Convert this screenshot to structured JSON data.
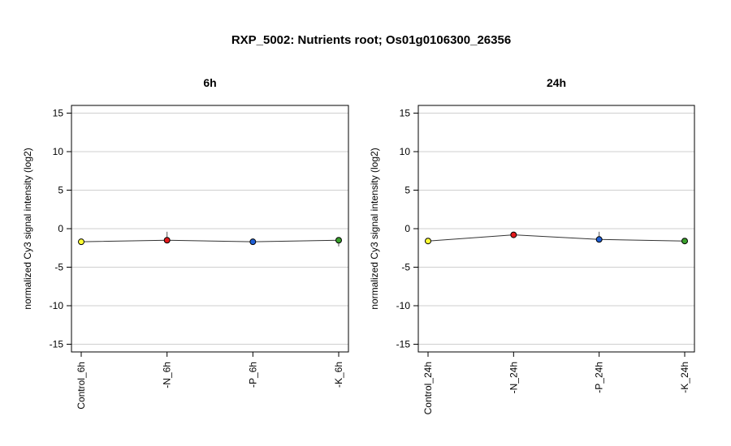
{
  "figure": {
    "title": "RXP_5002: Nutrients root; Os01g0106300_26356"
  },
  "chart_data": [
    {
      "type": "line",
      "title": "6h",
      "xlabel": "",
      "ylabel": "normalized Cy3 signal intensity (log2)",
      "ylim": [
        -16,
        16
      ],
      "yticks": [
        -15,
        -10,
        -5,
        0,
        5,
        10,
        15
      ],
      "grid": true,
      "categories": [
        "Control_6h",
        "-N_6h",
        "-P_6h",
        "-K_6h"
      ],
      "values": [
        -1.7,
        -1.5,
        -1.7,
        -1.5
      ],
      "error_upper": [
        0.0,
        1.1,
        0.0,
        0.0
      ],
      "error_lower": [
        0.0,
        0.0,
        0.0,
        0.8
      ],
      "point_colors": [
        "#ffff33",
        "#e41a1c",
        "#1f5fd6",
        "#3aa02c"
      ]
    },
    {
      "type": "line",
      "title": "24h",
      "xlabel": "",
      "ylabel": "normalized Cy3 signal intensity (log2)",
      "ylim": [
        -16,
        16
      ],
      "yticks": [
        -15,
        -10,
        -5,
        0,
        5,
        10,
        15
      ],
      "grid": true,
      "categories": [
        "Control_24h",
        "-N_24h",
        "-P_24h",
        "-K_24h"
      ],
      "values": [
        -1.6,
        -0.8,
        -1.4,
        -1.6
      ],
      "error_upper": [
        0.0,
        0.0,
        1.0,
        0.0
      ],
      "error_lower": [
        0.0,
        0.0,
        0.0,
        0.0
      ],
      "point_colors": [
        "#ffff33",
        "#e41a1c",
        "#1f5fd6",
        "#3aa02c"
      ]
    }
  ]
}
